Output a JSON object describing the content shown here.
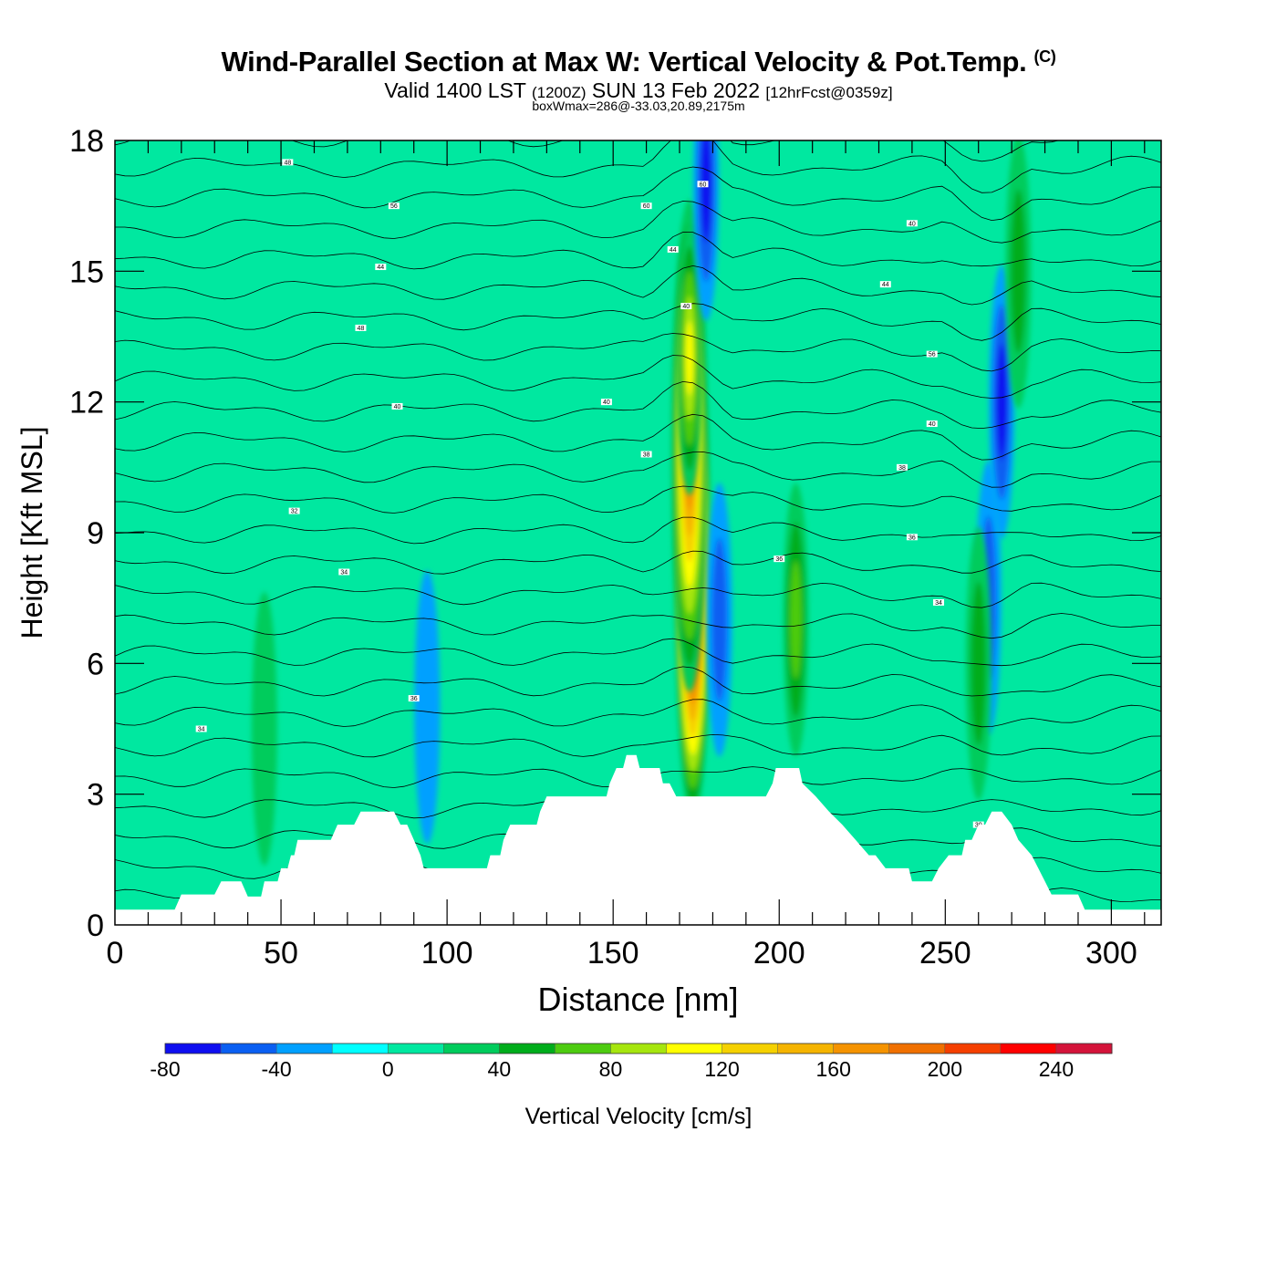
{
  "title": {
    "main": "Wind-Parallel Section at Max W: Vertical Velocity & Pot.Temp.",
    "copyright": "(C)",
    "valid_a": "Valid 1400 LST",
    "valid_b": "(1200Z)",
    "valid_c": "SUN 13 Feb 2022",
    "valid_d": "[12hrFcst@0359z]",
    "box": "boxWmax=286@-33.03,20.89,2175m"
  },
  "chart_data": {
    "type": "heatmap",
    "xlabel": "Distance [nm]",
    "ylabel": "Height [Kft MSL]",
    "xlim": [
      0,
      315
    ],
    "ylim": [
      0,
      18
    ],
    "x_ticks": [
      0,
      50,
      100,
      150,
      200,
      250,
      300
    ],
    "x_tick_labels": [
      "0",
      "50",
      "100",
      "150",
      "200",
      "250",
      "300"
    ],
    "y_ticks": [
      0,
      3,
      6,
      9,
      12,
      15,
      18
    ],
    "y_tick_labels": [
      "0",
      "3",
      "6",
      "9",
      "12",
      "15",
      "18"
    ],
    "colorbar": {
      "label": "Vertical Velocity [cm/s]",
      "bins": [
        -80,
        -60,
        -40,
        -20,
        0,
        20,
        40,
        60,
        80,
        100,
        120,
        140,
        160,
        180,
        200,
        220,
        240,
        260
      ],
      "tick_values": [
        -80,
        -40,
        0,
        40,
        80,
        120,
        160,
        200,
        240
      ],
      "tick_labels": [
        "-80",
        "-40",
        "0",
        "40",
        "80",
        "120",
        "160",
        "200",
        "240"
      ],
      "colors": [
        "#0f0ff0",
        "#0a5ff2",
        "#00a0ff",
        "#00ffff",
        "#00e8a0",
        "#00cc5c",
        "#00ad1b",
        "#4dcc10",
        "#a6e60e",
        "#ffff00",
        "#f5d100",
        "#f5b400",
        "#f59300",
        "#f07000",
        "#f53f00",
        "#ff0000",
        "#d4143a"
      ]
    },
    "background_value": "0 to 20 cm/s",
    "terrain": [
      [
        0,
        0.35
      ],
      [
        18,
        0.35
      ],
      [
        20,
        0.7
      ],
      [
        30,
        0.7
      ],
      [
        32,
        1.0
      ],
      [
        38,
        1.0
      ],
      [
        40,
        0.65
      ],
      [
        44,
        0.65
      ],
      [
        45,
        1.0
      ],
      [
        49,
        1.0
      ],
      [
        50,
        1.3
      ],
      [
        52,
        1.3
      ],
      [
        53,
        1.6
      ],
      [
        54,
        1.6
      ],
      [
        55,
        1.95
      ],
      [
        62,
        1.95
      ],
      [
        65,
        1.95
      ],
      [
        67,
        2.3
      ],
      [
        72,
        2.3
      ],
      [
        74,
        2.6
      ],
      [
        84,
        2.6
      ],
      [
        86,
        2.3
      ],
      [
        88,
        2.3
      ],
      [
        90,
        1.95
      ],
      [
        92,
        1.6
      ],
      [
        93,
        1.3
      ],
      [
        112,
        1.3
      ],
      [
        113,
        1.6
      ],
      [
        116,
        1.6
      ],
      [
        117,
        1.95
      ],
      [
        119,
        2.3
      ],
      [
        127,
        2.3
      ],
      [
        128,
        2.6
      ],
      [
        130,
        2.95
      ],
      [
        148,
        2.95
      ],
      [
        149,
        3.25
      ],
      [
        151,
        3.6
      ],
      [
        153,
        3.6
      ],
      [
        154,
        3.9
      ],
      [
        157,
        3.9
      ],
      [
        158,
        3.6
      ],
      [
        164,
        3.6
      ],
      [
        165,
        3.25
      ],
      [
        167,
        3.25
      ],
      [
        169,
        2.95
      ],
      [
        196,
        2.95
      ],
      [
        198,
        3.25
      ],
      [
        199,
        3.6
      ],
      [
        206,
        3.6
      ],
      [
        207,
        3.25
      ],
      [
        211,
        2.95
      ],
      [
        215,
        2.6
      ],
      [
        219,
        2.3
      ],
      [
        223,
        1.95
      ],
      [
        227,
        1.6
      ],
      [
        229,
        1.6
      ],
      [
        232,
        1.3
      ],
      [
        239,
        1.3
      ],
      [
        240,
        1.0
      ],
      [
        246,
        1.0
      ],
      [
        248,
        1.3
      ],
      [
        251,
        1.6
      ],
      [
        255,
        1.6
      ],
      [
        256,
        1.95
      ],
      [
        258,
        1.95
      ],
      [
        260,
        2.3
      ],
      [
        262,
        2.3
      ],
      [
        264,
        2.6
      ],
      [
        267,
        2.6
      ],
      [
        270,
        2.3
      ],
      [
        272,
        1.95
      ],
      [
        276,
        1.6
      ],
      [
        278,
        1.3
      ],
      [
        280,
        1.0
      ],
      [
        282,
        0.7
      ],
      [
        290,
        0.7
      ],
      [
        292,
        0.35
      ],
      [
        315,
        0.35
      ]
    ],
    "w_features": [
      {
        "x": 174,
        "z": 8.0,
        "w": 286
      },
      {
        "x": 173,
        "z": 11.0,
        "w": 180
      },
      {
        "x": 173,
        "z": 13.0,
        "w": 110
      },
      {
        "x": 182,
        "z": 7.0,
        "w": -40
      },
      {
        "x": 178,
        "z": 17.0,
        "w": -60
      },
      {
        "x": 263,
        "z": 7.5,
        "w": -50
      },
      {
        "x": 267,
        "z": 12.0,
        "w": -60
      },
      {
        "x": 94,
        "z": 5.0,
        "w": -30
      },
      {
        "x": 205,
        "z": 7.0,
        "w": 60
      },
      {
        "x": 260,
        "z": 6.0,
        "w": 50
      },
      {
        "x": 45,
        "z": 4.5,
        "w": 35
      },
      {
        "x": 272,
        "z": 15.0,
        "w": 45
      }
    ],
    "theta_contour_labels": [
      {
        "x": 52,
        "z": 17.5,
        "text": "48"
      },
      {
        "x": 84,
        "z": 16.5,
        "text": "56"
      },
      {
        "x": 80,
        "z": 15.1,
        "text": "44"
      },
      {
        "x": 74,
        "z": 13.7,
        "text": "48"
      },
      {
        "x": 85,
        "z": 11.9,
        "text": "40"
      },
      {
        "x": 54,
        "z": 9.5,
        "text": "32"
      },
      {
        "x": 69,
        "z": 8.1,
        "text": "34"
      },
      {
        "x": 26,
        "z": 4.5,
        "text": "34"
      },
      {
        "x": 90,
        "z": 5.2,
        "text": "36"
      },
      {
        "x": 160,
        "z": 16.5,
        "text": "60"
      },
      {
        "x": 168,
        "z": 15.5,
        "text": "44"
      },
      {
        "x": 172,
        "z": 14.2,
        "text": "40"
      },
      {
        "x": 148,
        "z": 12.0,
        "text": "40"
      },
      {
        "x": 160,
        "z": 10.8,
        "text": "38"
      },
      {
        "x": 177,
        "z": 17.0,
        "text": "60"
      },
      {
        "x": 200,
        "z": 8.4,
        "text": "36"
      },
      {
        "x": 240,
        "z": 16.1,
        "text": "40"
      },
      {
        "x": 232,
        "z": 14.7,
        "text": "44"
      },
      {
        "x": 246,
        "z": 13.1,
        "text": "56"
      },
      {
        "x": 246,
        "z": 11.5,
        "text": "40"
      },
      {
        "x": 237,
        "z": 10.5,
        "text": "38"
      },
      {
        "x": 240,
        "z": 8.9,
        "text": "36"
      },
      {
        "x": 248,
        "z": 7.4,
        "text": "34"
      },
      {
        "x": 260,
        "z": 2.3,
        "text": "30"
      }
    ]
  }
}
